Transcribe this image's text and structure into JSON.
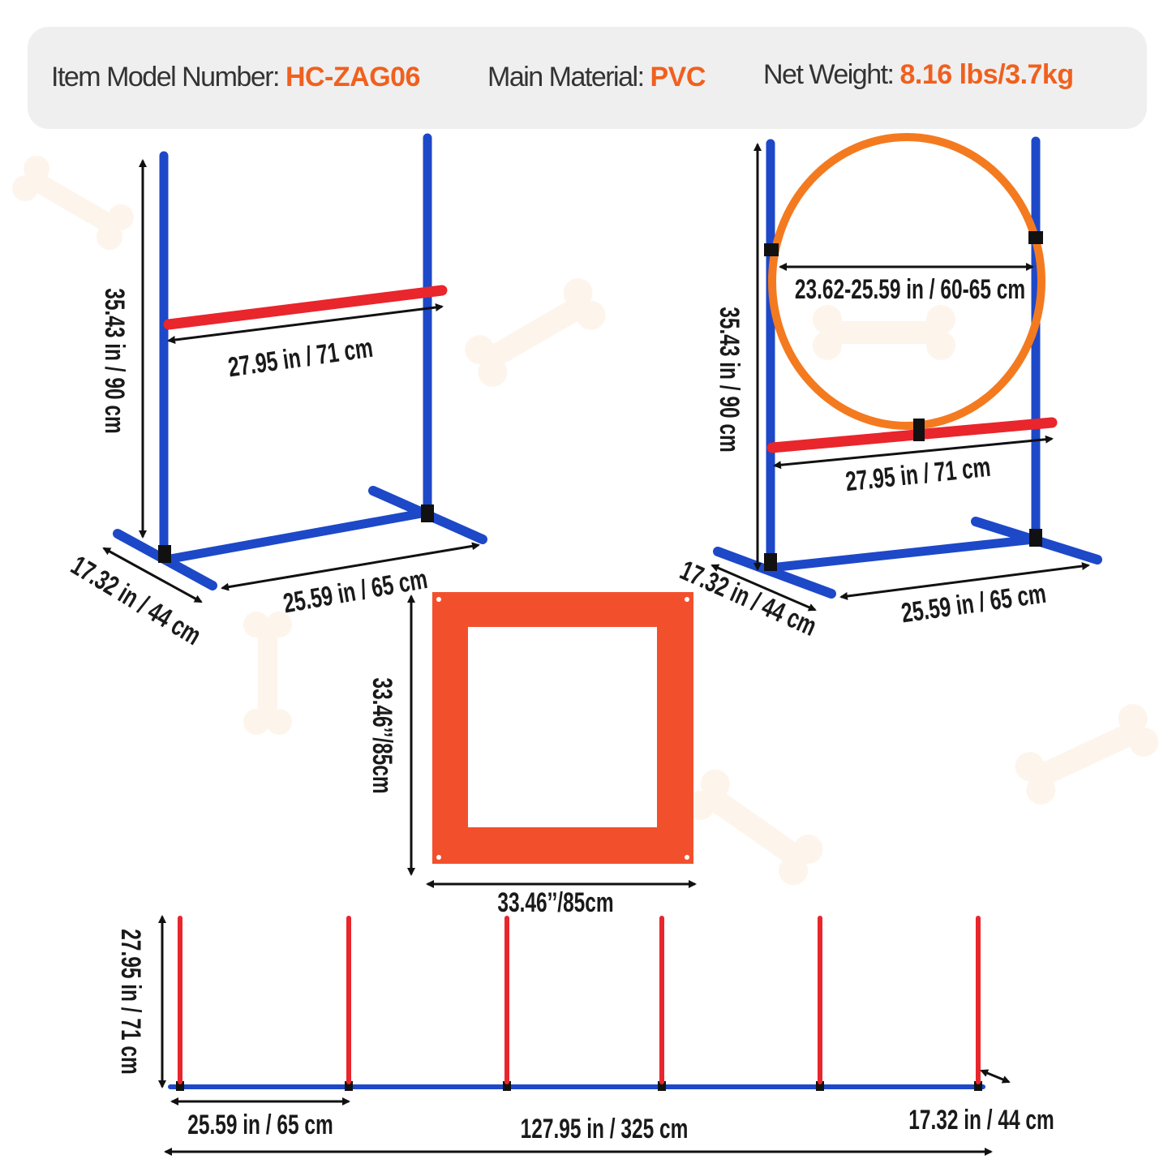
{
  "specs": [
    {
      "label": "Item Model Number:",
      "value": "HC-ZAG06"
    },
    {
      "label": "Main Material:",
      "value": "PVC"
    },
    {
      "label": "Net Weight:",
      "value": "8.16 lbs/3.7kg"
    }
  ],
  "hurdle": {
    "height": "35.43 in / 90 cm",
    "bar_width": "27.95 in / 71 cm",
    "base_width": "25.59 in / 65 cm",
    "base_depth": "17.32 in / 44 cm"
  },
  "hoop_jump": {
    "height": "35.43 in / 90 cm",
    "hoop_diameter": "23.62-25.59 in / 60-65 cm",
    "bar_width": "27.95 in / 71 cm",
    "base_width": "25.59 in / 65 cm",
    "base_depth": "17.32 in / 44 cm"
  },
  "pause_box": {
    "height": "33.46’’/85cm",
    "width": "33.46’’/85cm"
  },
  "weave_poles": {
    "height": "27.95 in / 71 cm",
    "spacing": "25.59 in / 65 cm",
    "total_length": "127.95 in / 325 cm",
    "foot_width": "17.32 in / 44 cm"
  },
  "colors": {
    "accent": "#f0601e",
    "pole_blue": "#1d48c8",
    "bar_red": "#e8262c",
    "hoop_orange": "#f47a20",
    "panel_red": "#f2502d"
  }
}
